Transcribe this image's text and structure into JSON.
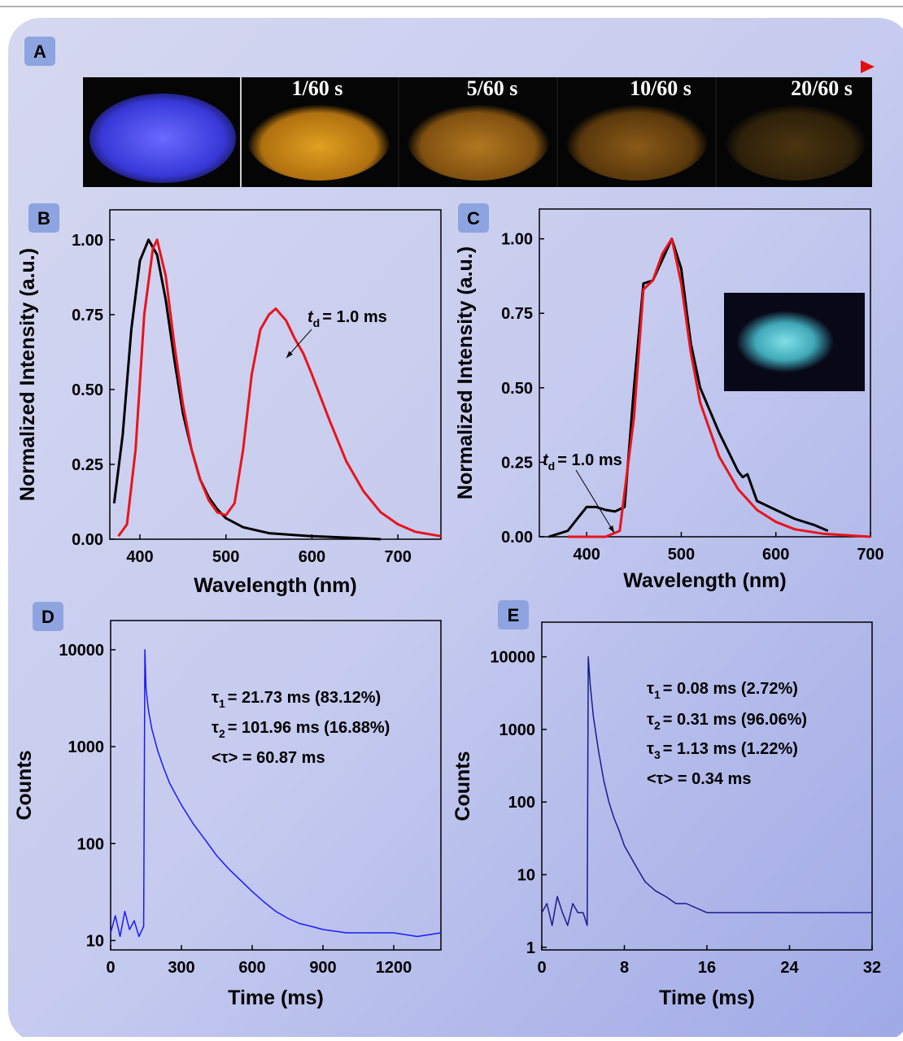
{
  "photo_strip": {
    "panel_label": "A",
    "labels": [
      "1/60 s",
      "5/60 s",
      "10/60 s",
      "20/60 s"
    ]
  },
  "chart_data": [
    {
      "type": "line",
      "panel_label": "B",
      "x_label": "Wavelength (nm)",
      "y_label": "Normalized Intensity (a.u.)",
      "xlim": [
        365,
        750
      ],
      "xticks": [
        400,
        500,
        600,
        700
      ],
      "ylim": [
        0,
        1.1
      ],
      "yticks": [
        {
          "value": 0,
          "label": "0.00"
        },
        {
          "value": 0.25,
          "label": "0.25"
        },
        {
          "value": 0.5,
          "label": "0.50"
        },
        {
          "value": 0.75,
          "label": "0.75"
        },
        {
          "value": 1,
          "label": "1.00"
        }
      ],
      "series": [
        {
          "color": "#000000",
          "x": [
            370,
            380,
            390,
            400,
            410,
            420,
            430,
            440,
            450,
            460,
            470,
            480,
            490,
            500,
            520,
            550,
            600,
            650,
            680
          ],
          "values": [
            0.12,
            0.35,
            0.7,
            0.93,
            1.0,
            0.95,
            0.8,
            0.6,
            0.42,
            0.3,
            0.2,
            0.14,
            0.1,
            0.07,
            0.04,
            0.02,
            0.01,
            0.004,
            0.0
          ]
        },
        {
          "color": "#e8141c",
          "x": [
            375,
            385,
            395,
            405,
            415,
            420,
            430,
            440,
            450,
            460,
            470,
            480,
            490,
            500,
            510,
            520,
            530,
            540,
            550,
            558,
            570,
            580,
            590,
            600,
            620,
            640,
            660,
            680,
            700,
            720,
            750
          ],
          "values": [
            0.01,
            0.05,
            0.3,
            0.75,
            0.97,
            1.0,
            0.88,
            0.65,
            0.45,
            0.3,
            0.2,
            0.13,
            0.09,
            0.08,
            0.12,
            0.3,
            0.55,
            0.7,
            0.75,
            0.77,
            0.73,
            0.67,
            0.62,
            0.55,
            0.4,
            0.26,
            0.16,
            0.09,
            0.05,
            0.025,
            0.01
          ]
        }
      ],
      "annotations": [
        {
          "symbol": "t",
          "sub": "d",
          "text": "= 1.0 ms"
        }
      ]
    },
    {
      "type": "line",
      "panel_label": "C",
      "x_label": "Wavelength (nm)",
      "y_label": "Normalized Intensity (a.u.)",
      "xlim": [
        350,
        700
      ],
      "xticks": [
        400,
        500,
        600,
        700
      ],
      "ylim": [
        0,
        1.1
      ],
      "yticks": [
        {
          "value": 0,
          "label": "0.00"
        },
        {
          "value": 0.25,
          "label": "0.25"
        },
        {
          "value": 0.5,
          "label": "0.50"
        },
        {
          "value": 0.75,
          "label": "0.75"
        },
        {
          "value": 1,
          "label": "1.00"
        }
      ],
      "series": [
        {
          "color": "#000000",
          "x": [
            360,
            380,
            390,
            400,
            410,
            420,
            430,
            440,
            450,
            460,
            470,
            480,
            490,
            500,
            510,
            520,
            540,
            560,
            565,
            570,
            580,
            600,
            620,
            640,
            655
          ],
          "values": [
            0.0,
            0.02,
            0.06,
            0.1,
            0.1,
            0.09,
            0.085,
            0.1,
            0.5,
            0.85,
            0.86,
            0.93,
            1.0,
            0.9,
            0.65,
            0.5,
            0.35,
            0.22,
            0.2,
            0.21,
            0.12,
            0.09,
            0.06,
            0.04,
            0.02
          ]
        },
        {
          "color": "#e8141c",
          "x": [
            380,
            420,
            435,
            450,
            460,
            470,
            480,
            490,
            500,
            510,
            520,
            540,
            560,
            580,
            600,
            620,
            650,
            700
          ],
          "values": [
            0.0,
            0.0,
            0.02,
            0.4,
            0.83,
            0.86,
            0.95,
            1.0,
            0.85,
            0.62,
            0.45,
            0.27,
            0.16,
            0.09,
            0.05,
            0.025,
            0.01,
            0.0
          ]
        }
      ],
      "annotations": [
        {
          "symbol": "t",
          "sub": "d",
          "text": "= 1.0 ms"
        }
      ]
    },
    {
      "type": "line",
      "panel_label": "D",
      "x_label": "Time (ms)",
      "y_label": "Counts",
      "ylog": true,
      "xlim": [
        0,
        1400
      ],
      "xticks": [
        0,
        300,
        600,
        900,
        1200
      ],
      "ylim": [
        8,
        20000
      ],
      "yticks": [
        10,
        100,
        1000,
        10000
      ],
      "series": [
        {
          "color": "#1a1aff",
          "x": [
            0,
            20,
            40,
            60,
            80,
            100,
            120,
            140,
            145,
            150,
            160,
            175,
            200,
            225,
            250,
            300,
            350,
            400,
            450,
            500,
            550,
            600,
            650,
            700,
            750,
            800,
            850,
            900,
            1000,
            1100,
            1200,
            1300,
            1400
          ],
          "values": [
            12,
            18,
            11,
            20,
            13,
            16,
            11,
            14,
            10000,
            4000,
            2400,
            1500,
            900,
            600,
            420,
            250,
            160,
            110,
            75,
            55,
            42,
            32,
            25,
            20,
            17,
            15,
            14,
            13,
            12,
            12,
            12,
            11,
            12
          ]
        }
      ],
      "annotations": [
        {
          "symbol": "τ",
          "sub": "1",
          "text": "= 21.73 ms (83.12%)"
        },
        {
          "symbol": "τ",
          "sub": "2",
          "text": "= 101.96 ms (16.88%)"
        },
        {
          "text": "<τ> = 60.87 ms"
        }
      ]
    },
    {
      "type": "line",
      "panel_label": "E",
      "x_label": "Time (ms)",
      "y_label": "Counts",
      "ylog": true,
      "xlim": [
        0,
        32
      ],
      "xticks": [
        0,
        8,
        16,
        24,
        32
      ],
      "ylim": [
        0.92,
        30000
      ],
      "yticks": [
        1,
        10,
        100,
        1000,
        10000
      ],
      "series": [
        {
          "color": "#1a1a8c",
          "x": [
            0,
            0.5,
            1,
            1.5,
            2,
            2.5,
            3,
            3.5,
            4,
            4.4,
            4.5,
            4.7,
            5,
            5.5,
            6,
            6.5,
            7,
            7.5,
            8,
            9,
            10,
            11,
            12,
            13,
            14,
            16,
            18,
            20,
            22,
            24,
            26,
            28,
            30,
            32
          ],
          "values": [
            3,
            4,
            2,
            5,
            3,
            2,
            4,
            3,
            3,
            2,
            10000,
            4000,
            1500,
            500,
            200,
            100,
            60,
            40,
            25,
            14,
            8,
            6,
            5,
            4,
            4,
            3,
            3,
            3,
            3,
            3,
            3,
            3,
            3,
            3
          ]
        }
      ],
      "annotations": [
        {
          "symbol": "τ",
          "sub": "1",
          "text": "= 0.08 ms (2.72%)"
        },
        {
          "symbol": "τ",
          "sub": "2",
          "text": "= 0.31 ms (96.06%)"
        },
        {
          "symbol": "τ",
          "sub": "3",
          "text": "= 1.13 ms (1.22%)"
        },
        {
          "text": "<τ> = 0.34 ms"
        }
      ]
    }
  ]
}
